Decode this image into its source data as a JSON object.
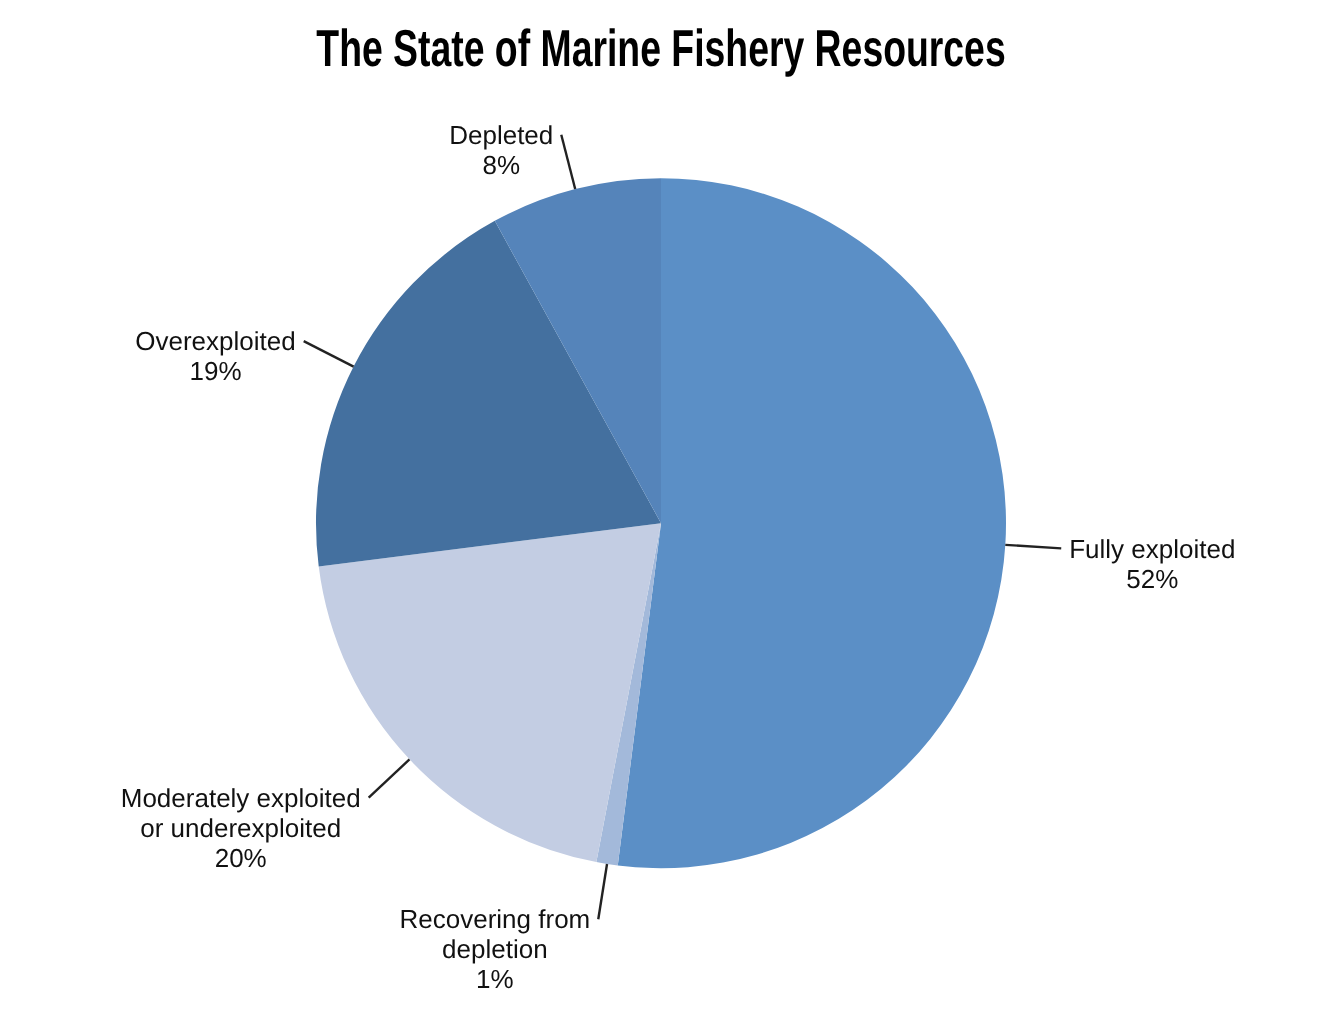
{
  "chart_data": {
    "type": "pie",
    "title": "The State of Marine Fishery Resources",
    "categories": [
      "Fully exploited",
      "Recovering from depletion",
      "Moderately exploited or underexploited",
      "Overexploited",
      "Depleted"
    ],
    "values": [
      52,
      1,
      20,
      19,
      8
    ],
    "value_labels": [
      "52%",
      "1%",
      "20%",
      "19%",
      "8%"
    ],
    "colors": [
      "#5b8fc6",
      "#a3b9da",
      "#c3cde3",
      "#44709f",
      "#5584ba"
    ],
    "legend": false
  }
}
